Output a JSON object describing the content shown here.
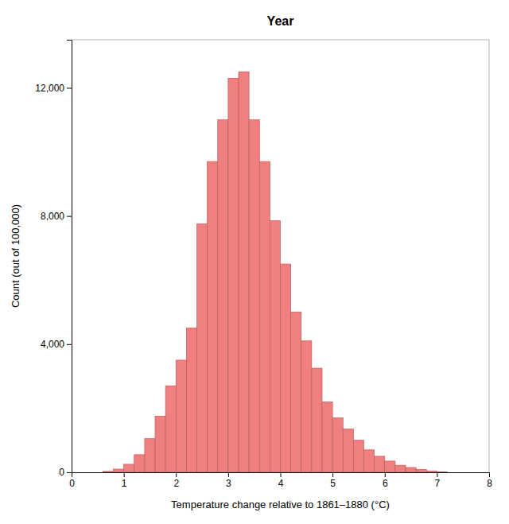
{
  "chart_data": {
    "type": "histogram",
    "title": "Year",
    "xlabel": "Temperature change relative to 1861–1880 (°C)",
    "ylabel": "Count (out of 100,000)",
    "bins": [
      0.6,
      0.8,
      1.0,
      1.2,
      1.4,
      1.6,
      1.8,
      2.0,
      2.2,
      2.4,
      2.6,
      2.8,
      3.0,
      3.2,
      3.4,
      3.6,
      3.8,
      4.0,
      4.2,
      4.4,
      4.6,
      4.8,
      5.0,
      5.2,
      5.4,
      5.6,
      5.8,
      6.0,
      6.2,
      6.4,
      6.6,
      6.8,
      7.0,
      7.2
    ],
    "values": [
      30,
      100,
      250,
      550,
      1050,
      1750,
      2700,
      3500,
      4500,
      7750,
      9700,
      11000,
      12300,
      12500,
      11000,
      9700,
      7850,
      6500,
      5000,
      4100,
      3250,
      2200,
      1700,
      1350,
      1000,
      700,
      500,
      350,
      220,
      150,
      90,
      45,
      15
    ],
    "color": "#f08080",
    "xlim": [
      0,
      8
    ],
    "ylim": [
      0,
      13500
    ],
    "xticks": [
      0,
      1,
      2,
      3,
      4,
      5,
      6,
      7,
      8
    ],
    "yticks": [
      0,
      {
        "value": 4000,
        "label": "4,000"
      },
      {
        "value": 8000,
        "label": "8,000"
      },
      {
        "value": 12000,
        "label": "12,000"
      }
    ],
    "grid": false
  }
}
